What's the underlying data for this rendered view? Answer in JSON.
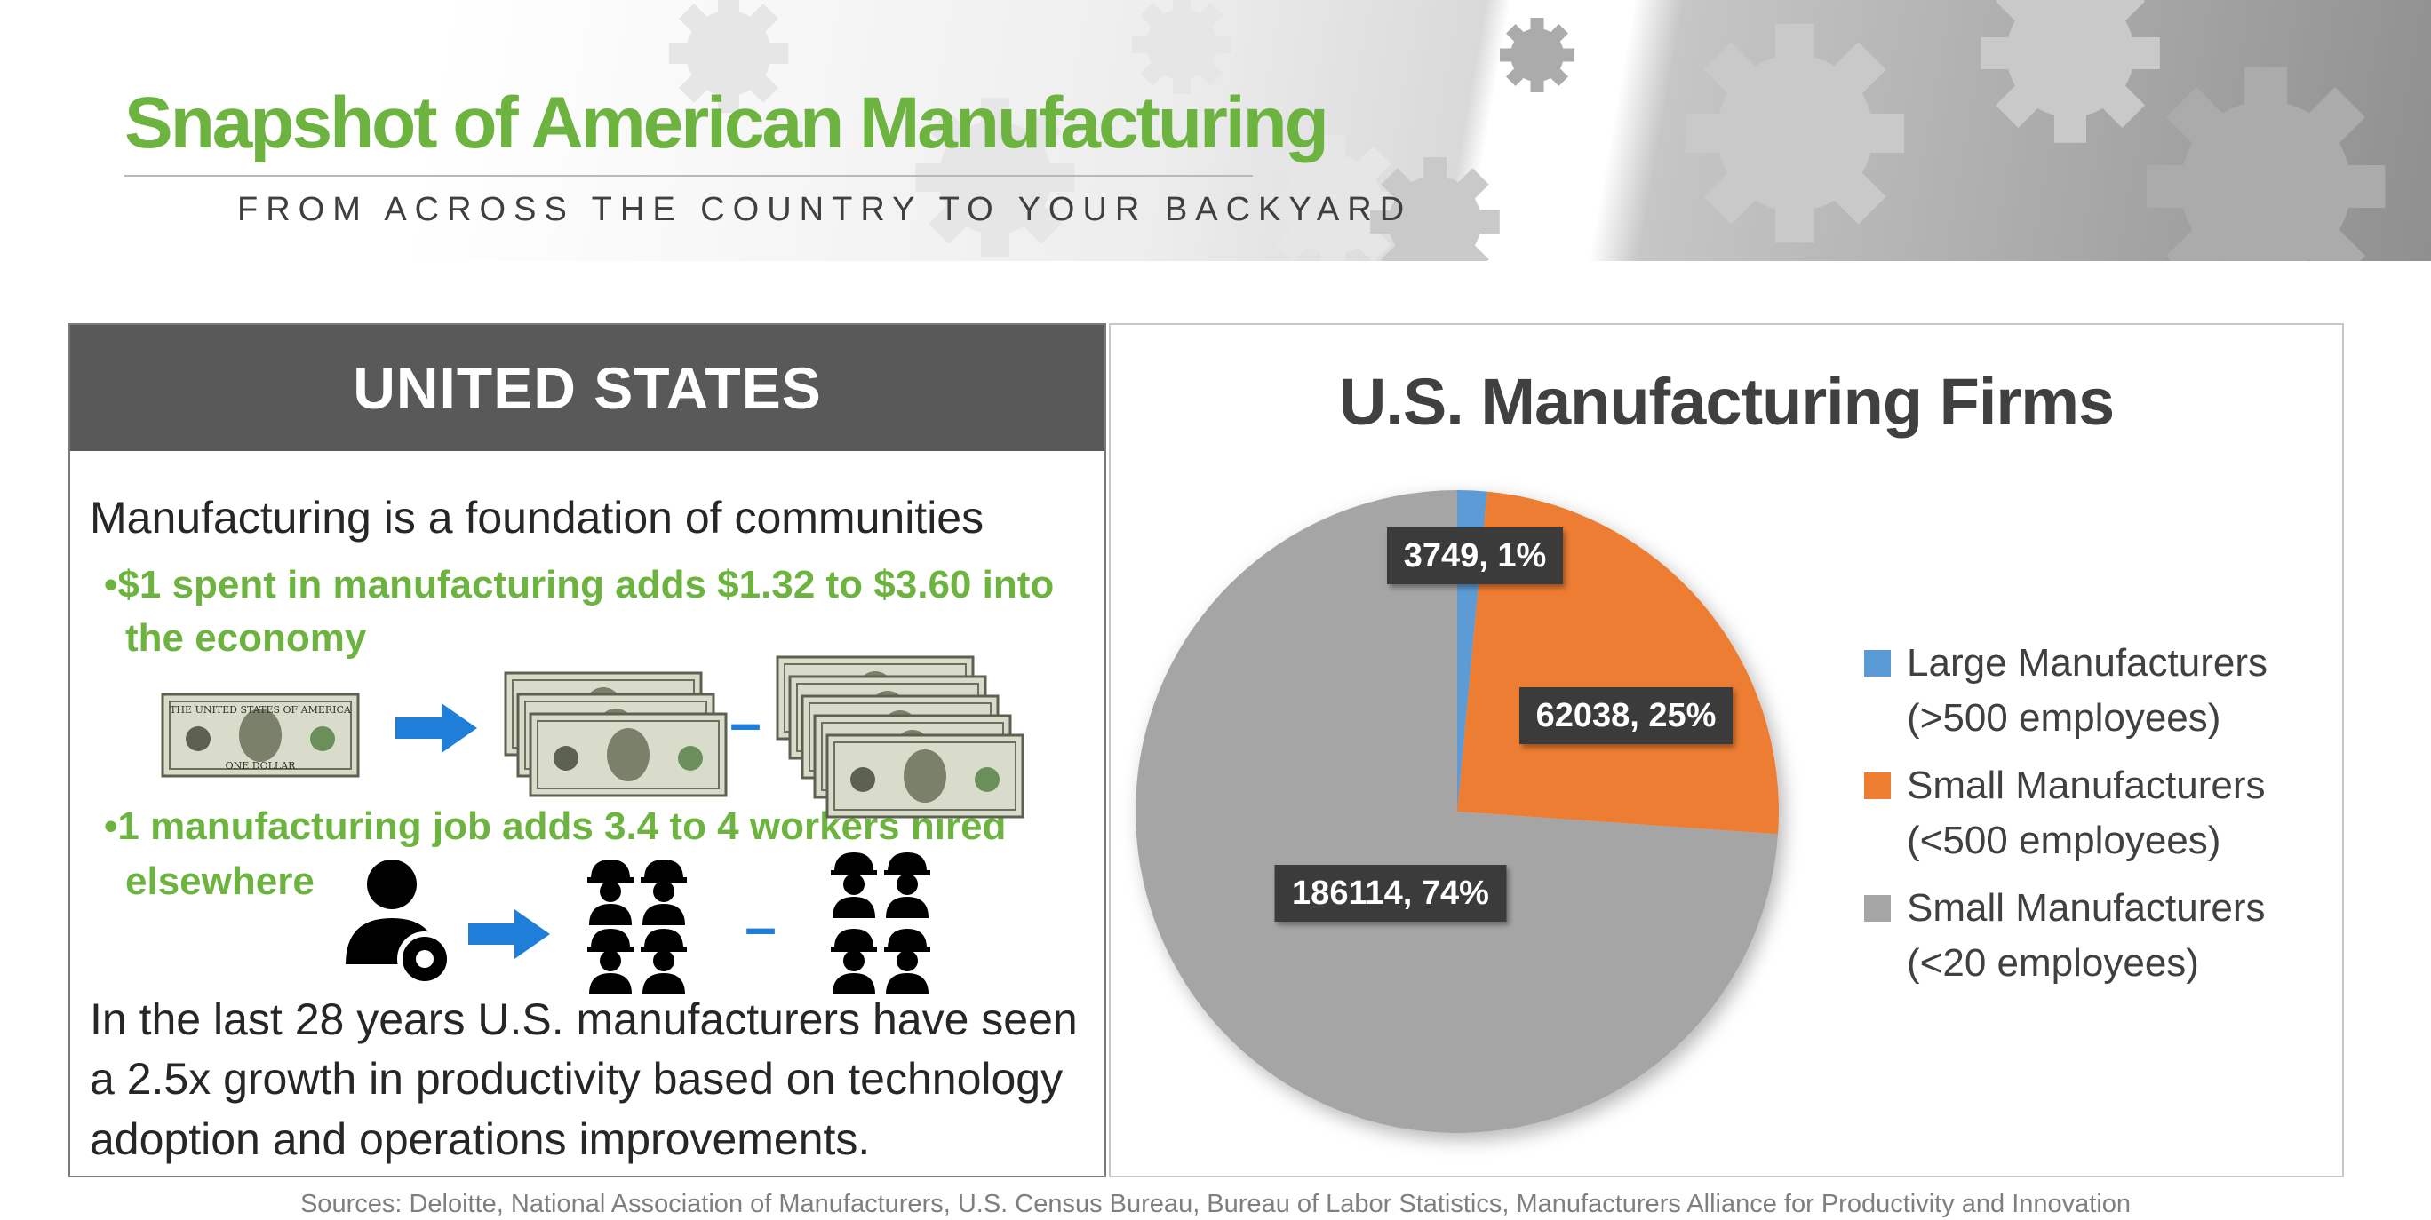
{
  "header": {
    "title": "Snapshot of American Manufacturing",
    "subtitle": "FROM ACROSS THE COUNTRY TO YOUR BACKYARD"
  },
  "us_panel": {
    "heading": "UNITED STATES",
    "lead": "Manufacturing is a foundation of communities",
    "bullet1_line1": "•$1 spent in manufacturing adds $1.32 to $3.60 into",
    "bullet1_line2": "the economy",
    "bullet2_line1": "•1 manufacturing job adds 3.4 to 4 workers hired",
    "bullet2_line2": "elsewhere",
    "dollar_note_text": "THE UNITED STATES OF AMERICA",
    "dollar_note_label": "ONE DOLLAR",
    "dash": "–",
    "body_line1": "In the last 28 years U.S. manufacturers have seen",
    "body_line2": "a 2.5x growth in productivity based on technology",
    "body_line3": "adoption and operations improvements."
  },
  "chart_data": {
    "type": "pie",
    "title": "U.S. Manufacturing Firms",
    "legend_position": "right",
    "slices": [
      {
        "legend_line1": "Large Manufacturers",
        "legend_line2": "(>500 employees)",
        "value": 3749,
        "percent": 1,
        "label": "3749, 1%",
        "color": "#5b9bd5"
      },
      {
        "legend_line1": "Small Manufacturers",
        "legend_line2": "(<500 employees)",
        "value": 62038,
        "percent": 25,
        "label": "62038, 25%",
        "color": "#ed7d31"
      },
      {
        "legend_line1": "Small Manufacturers",
        "legend_line2": "(<20 employees)",
        "value": 186114,
        "percent": 74,
        "label": "186114, 74%",
        "color": "#a5a5a5"
      }
    ]
  },
  "footer": {
    "sources": "Sources: Deloitte, National Association of Manufacturers, U.S. Census Bureau, Bureau of Labor Statistics, Manufacturers Alliance for Productivity and Innovation"
  },
  "colors": {
    "title_green": "#6db33f",
    "arrow_blue": "#1f7ed8",
    "header_gray": "#595959"
  }
}
